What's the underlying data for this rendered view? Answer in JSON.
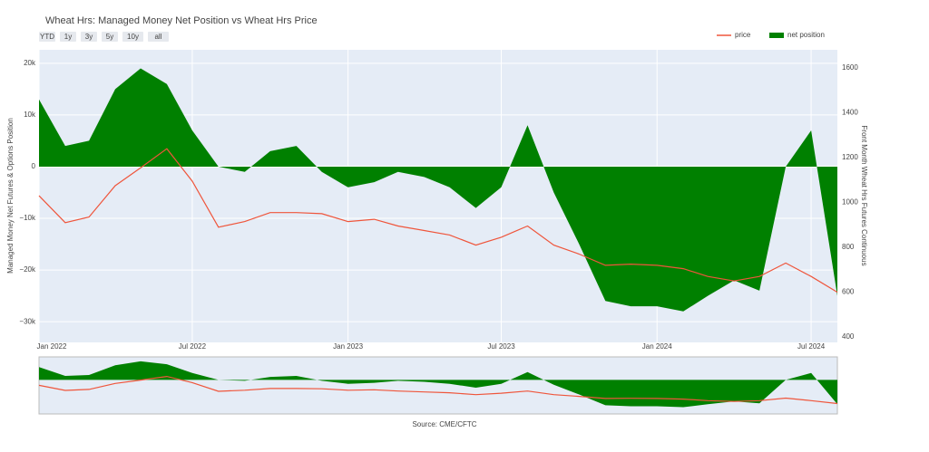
{
  "chart_data": {
    "type": "area-line",
    "title": "Wheat Hrs: Managed Money Net Position vs Wheat Hrs Price",
    "range_buttons": [
      "YTD",
      "1y",
      "3y",
      "5y",
      "10y",
      "all"
    ],
    "source": "Source: CME/CFTC",
    "y_label": "Managed Money Net Futures & Options Position",
    "y2_label": "Front Month Wheat Hrs Futures Continuous",
    "legend_position": "top-right",
    "grid": true,
    "range_slider": true,
    "x": [
      "2022-01",
      "2022-02",
      "2022-03",
      "2022-04",
      "2022-05",
      "2022-06",
      "2022-07",
      "2022-08",
      "2022-09",
      "2022-10",
      "2022-11",
      "2022-12",
      "2023-01",
      "2023-02",
      "2023-03",
      "2023-04",
      "2023-05",
      "2023-06",
      "2023-07",
      "2023-08",
      "2023-09",
      "2023-10",
      "2023-11",
      "2023-12",
      "2024-01",
      "2024-02",
      "2024-03",
      "2024-04",
      "2024-05",
      "2024-06",
      "2024-07",
      "2024-08"
    ],
    "series": [
      {
        "name": "net position",
        "color": "#008000",
        "kind": "area",
        "axis": "y",
        "values": [
          13000,
          4000,
          5000,
          15000,
          19000,
          16000,
          7000,
          0,
          -1000,
          3000,
          4000,
          -1000,
          -4000,
          -3000,
          -1000,
          -2000,
          -4000,
          -8000,
          -4000,
          8000,
          -5000,
          -15000,
          -26000,
          -27000,
          -27000,
          -28000,
          -25000,
          -22000,
          -24000,
          0,
          7000,
          -25000
        ]
      },
      {
        "name": "price",
        "color": "#ef553b",
        "kind": "line",
        "axis": "y2",
        "values": [
          1030,
          910,
          935,
          1075,
          1155,
          1240,
          1095,
          890,
          915,
          955,
          955,
          950,
          915,
          925,
          895,
          875,
          855,
          810,
          845,
          895,
          810,
          770,
          720,
          725,
          720,
          705,
          670,
          650,
          670,
          730,
          670,
          600
        ]
      }
    ],
    "ylim": [
      -34000,
      22600
    ],
    "yticks": [
      {
        "value": 20000,
        "label": "20k"
      },
      {
        "value": 10000,
        "label": "10k"
      },
      0,
      {
        "value": -10000,
        "label": "−10k"
      },
      {
        "value": -20000,
        "label": "−20k"
      },
      {
        "value": -30000,
        "label": "−30k"
      }
    ],
    "y2lim": [
      376,
      1681
    ],
    "y2ticks": [
      400,
      600,
      800,
      1000,
      1200,
      1400,
      1600
    ],
    "xticks": [
      {
        "value": "2022-01",
        "label": "Jan 2022"
      },
      {
        "value": "2022-07",
        "label": "Jul 2022"
      },
      {
        "value": "2023-01",
        "label": "Jan 2023"
      },
      {
        "value": "2023-07",
        "label": "Jul 2023"
      },
      {
        "value": "2024-01",
        "label": "Jan 2024"
      },
      {
        "value": "2024-07",
        "label": "Jul 2024"
      }
    ]
  }
}
